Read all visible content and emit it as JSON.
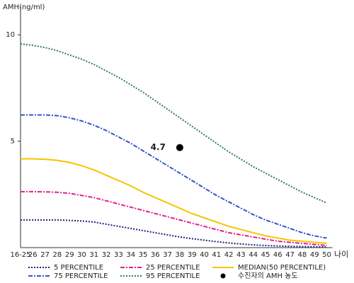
{
  "chart_data": {
    "type": "line",
    "y_label": "AMH(ng/ml)",
    "x_label": "나이",
    "categories": [
      "16-25",
      "26",
      "27",
      "28",
      "29",
      "30",
      "31",
      "32",
      "33",
      "34",
      "35",
      "36",
      "37",
      "38",
      "39",
      "40",
      "41",
      "42",
      "43",
      "44",
      "45",
      "46",
      "47",
      "48",
      "49",
      "50"
    ],
    "ylim": [
      0,
      11.3
    ],
    "yticks": [
      5,
      10
    ],
    "series": [
      {
        "name": "5 PERCENTILE",
        "color": "#1a237e",
        "dash": "2,2",
        "values": [
          1.3,
          1.3,
          1.3,
          1.3,
          1.28,
          1.25,
          1.2,
          1.1,
          1.0,
          0.9,
          0.8,
          0.7,
          0.6,
          0.5,
          0.42,
          0.35,
          0.28,
          0.22,
          0.17,
          0.13,
          0.1,
          0.08,
          0.06,
          0.05,
          0.04,
          0.03
        ]
      },
      {
        "name": "25 PERCENTILE",
        "color": "#e0218a",
        "dash": "6,2,2,2",
        "values": [
          2.63,
          2.63,
          2.62,
          2.6,
          2.55,
          2.45,
          2.35,
          2.2,
          2.05,
          1.9,
          1.75,
          1.6,
          1.45,
          1.3,
          1.15,
          1.0,
          0.85,
          0.7,
          0.6,
          0.5,
          0.4,
          0.3,
          0.25,
          0.2,
          0.15,
          0.1
        ]
      },
      {
        "name": "MEDIAN(50 PERCENTILE)",
        "color": "#f5c400",
        "dash": "none",
        "values": [
          4.17,
          4.17,
          4.15,
          4.1,
          4.0,
          3.85,
          3.65,
          3.4,
          3.15,
          2.9,
          2.6,
          2.35,
          2.1,
          1.85,
          1.6,
          1.4,
          1.2,
          1.0,
          0.85,
          0.7,
          0.55,
          0.45,
          0.35,
          0.3,
          0.25,
          0.2
        ]
      },
      {
        "name": "75 PERCENTILE",
        "color": "#3355cc",
        "dash": "6,2,2,2",
        "values": [
          6.23,
          6.23,
          6.23,
          6.2,
          6.1,
          5.95,
          5.75,
          5.5,
          5.2,
          4.9,
          4.55,
          4.2,
          3.85,
          3.5,
          3.15,
          2.8,
          2.45,
          2.15,
          1.85,
          1.55,
          1.3,
          1.1,
          0.9,
          0.7,
          0.55,
          0.45
        ]
      },
      {
        "name": "95 PERCENTILE",
        "color": "#2e7d4f",
        "dash": "2,2",
        "values": [
          9.57,
          9.5,
          9.4,
          9.25,
          9.05,
          8.85,
          8.6,
          8.3,
          8.0,
          7.65,
          7.3,
          6.9,
          6.5,
          6.1,
          5.7,
          5.3,
          4.9,
          4.5,
          4.15,
          3.8,
          3.5,
          3.2,
          2.9,
          2.6,
          2.35,
          2.1
        ]
      }
    ],
    "point": {
      "name": "수진자의 AMH 농도",
      "category": "38",
      "value": 4.7,
      "color": "#000000"
    }
  }
}
